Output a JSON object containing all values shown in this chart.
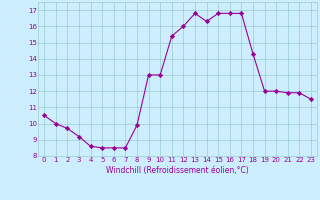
{
  "x": [
    0,
    1,
    2,
    3,
    4,
    5,
    6,
    7,
    8,
    9,
    10,
    11,
    12,
    13,
    14,
    15,
    16,
    17,
    18,
    19,
    20,
    21,
    22,
    23
  ],
  "y": [
    10.5,
    10.0,
    9.7,
    9.2,
    8.6,
    8.5,
    8.5,
    8.5,
    9.9,
    13.0,
    13.0,
    15.4,
    16.0,
    16.8,
    16.3,
    16.8,
    16.8,
    16.8,
    14.3,
    12.0,
    12.0,
    11.9,
    11.9,
    11.5
  ],
  "line_color": "#990099",
  "marker": "D",
  "marker_size": 2.2,
  "background_color": "#cceeff",
  "grid_color": "#99cccc",
  "xlabel": "Windchill (Refroidissement éolien,°C)",
  "xlabel_color": "#990099",
  "tick_color": "#990099",
  "xlim": [
    -0.5,
    23.5
  ],
  "ylim": [
    8,
    17.5
  ],
  "yticks": [
    8,
    9,
    10,
    11,
    12,
    13,
    14,
    15,
    16,
    17
  ],
  "xticks": [
    0,
    1,
    2,
    3,
    4,
    5,
    6,
    7,
    8,
    9,
    10,
    11,
    12,
    13,
    14,
    15,
    16,
    17,
    18,
    19,
    20,
    21,
    22,
    23
  ]
}
